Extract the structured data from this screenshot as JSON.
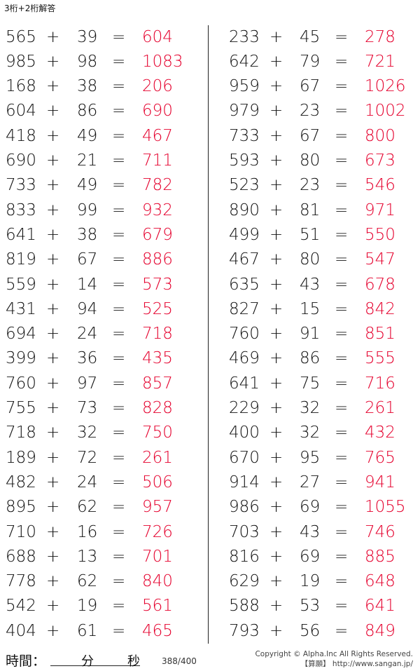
{
  "title": "3桁+2桁解答",
  "operator": "+",
  "equals": "=",
  "colors": {
    "answer": "#e5002d",
    "text": "#111111"
  },
  "left": [
    [
      "565",
      "39",
      "604"
    ],
    [
      "985",
      "98",
      "1083"
    ],
    [
      "168",
      "38",
      "206"
    ],
    [
      "604",
      "86",
      "690"
    ],
    [
      "418",
      "49",
      "467"
    ],
    [
      "690",
      "21",
      "711"
    ],
    [
      "733",
      "49",
      "782"
    ],
    [
      "833",
      "99",
      "932"
    ],
    [
      "641",
      "38",
      "679"
    ],
    [
      "819",
      "67",
      "886"
    ],
    [
      "559",
      "14",
      "573"
    ],
    [
      "431",
      "94",
      "525"
    ],
    [
      "694",
      "24",
      "718"
    ],
    [
      "399",
      "36",
      "435"
    ],
    [
      "760",
      "97",
      "857"
    ],
    [
      "755",
      "73",
      "828"
    ],
    [
      "718",
      "32",
      "750"
    ],
    [
      "189",
      "72",
      "261"
    ],
    [
      "482",
      "24",
      "506"
    ],
    [
      "895",
      "62",
      "957"
    ],
    [
      "710",
      "16",
      "726"
    ],
    [
      "688",
      "13",
      "701"
    ],
    [
      "778",
      "62",
      "840"
    ],
    [
      "542",
      "19",
      "561"
    ],
    [
      "404",
      "61",
      "465"
    ]
  ],
  "right": [
    [
      "233",
      "45",
      "278"
    ],
    [
      "642",
      "79",
      "721"
    ],
    [
      "959",
      "67",
      "1026"
    ],
    [
      "979",
      "23",
      "1002"
    ],
    [
      "733",
      "67",
      "800"
    ],
    [
      "593",
      "80",
      "673"
    ],
    [
      "523",
      "23",
      "546"
    ],
    [
      "890",
      "81",
      "971"
    ],
    [
      "499",
      "51",
      "550"
    ],
    [
      "467",
      "80",
      "547"
    ],
    [
      "635",
      "43",
      "678"
    ],
    [
      "827",
      "15",
      "842"
    ],
    [
      "760",
      "91",
      "851"
    ],
    [
      "469",
      "86",
      "555"
    ],
    [
      "641",
      "75",
      "716"
    ],
    [
      "229",
      "32",
      "261"
    ],
    [
      "400",
      "32",
      "432"
    ],
    [
      "670",
      "95",
      "765"
    ],
    [
      "914",
      "27",
      "941"
    ],
    [
      "986",
      "69",
      "1055"
    ],
    [
      "703",
      "43",
      "746"
    ],
    [
      "816",
      "69",
      "885"
    ],
    [
      "629",
      "19",
      "648"
    ],
    [
      "588",
      "53",
      "641"
    ],
    [
      "793",
      "56",
      "849"
    ]
  ],
  "footer": {
    "time_label": "時間：",
    "minutes_label": "分",
    "seconds_label": "秒",
    "page": "388/400",
    "copyright": "Copyright © Alpha.Inc All Rights Reserved.",
    "site": "【算願】 http://www.sangan.jp/"
  }
}
